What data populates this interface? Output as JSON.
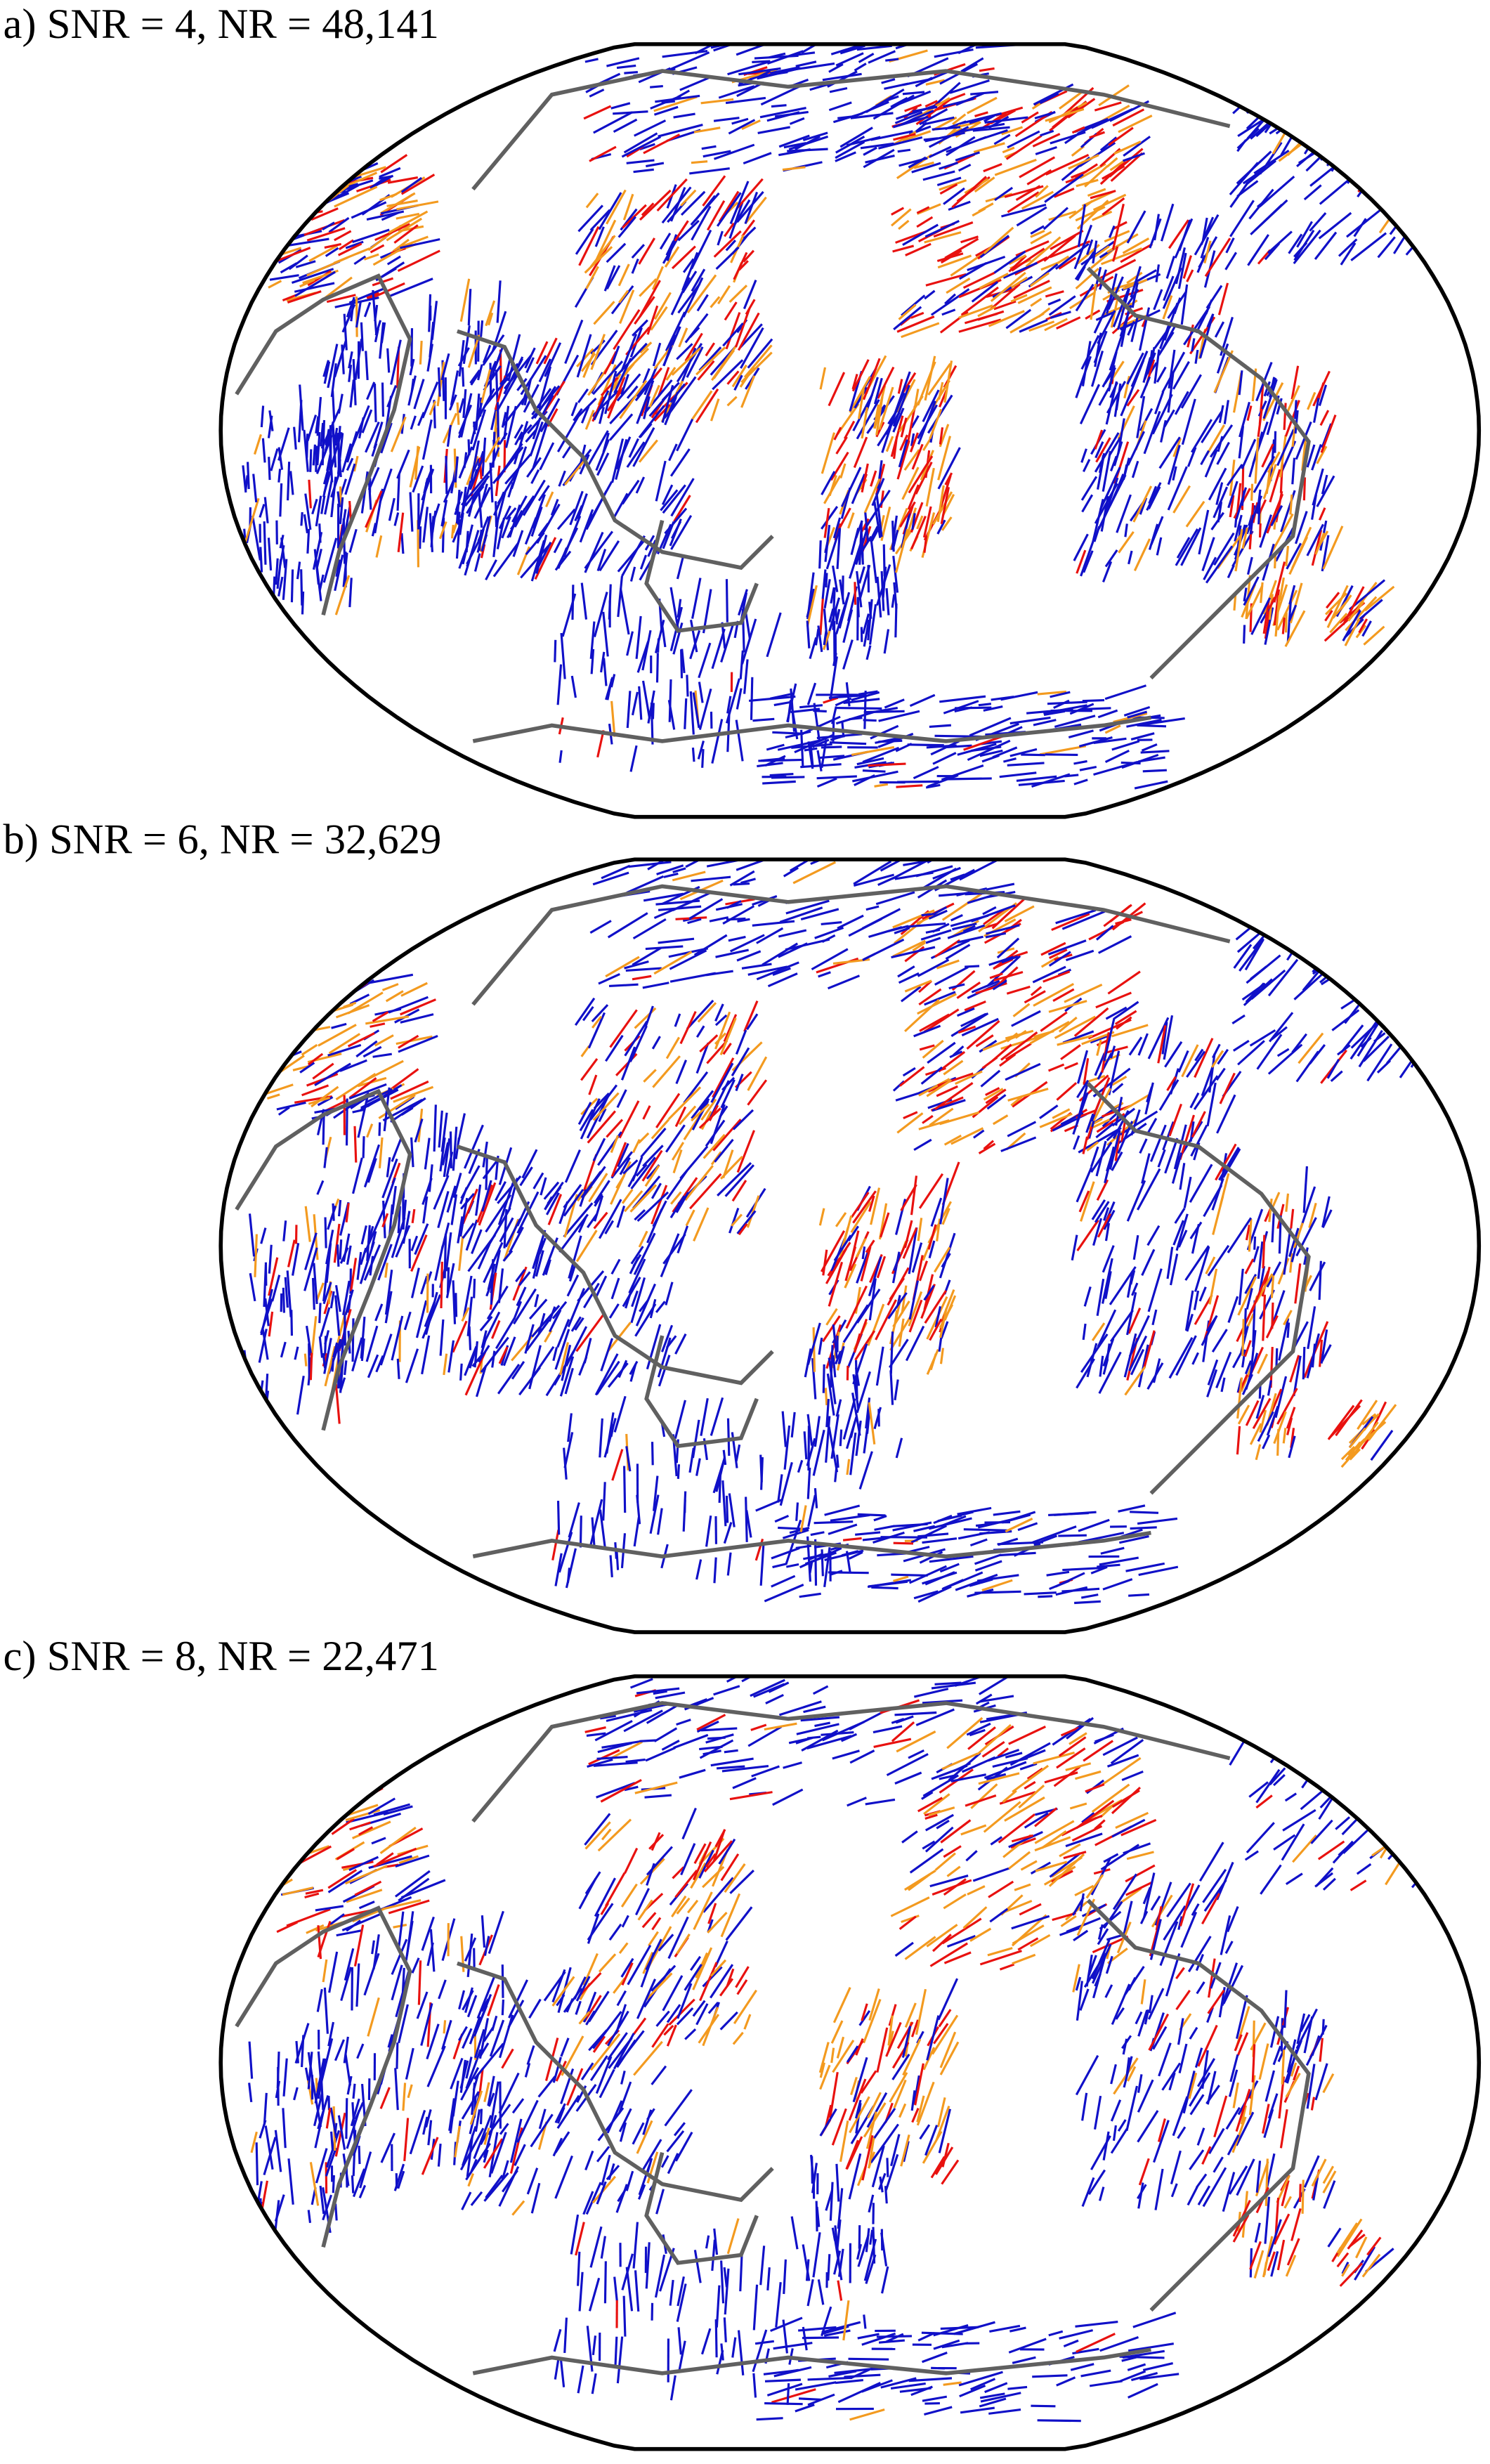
{
  "panels": [
    {
      "label": "a) SNR = 4, NR = 48,141"
    },
    {
      "label": "b) SNR = 6, NR = 32,629"
    },
    {
      "label": "c) SNR = 8, NR = 22,471"
    }
  ]
}
